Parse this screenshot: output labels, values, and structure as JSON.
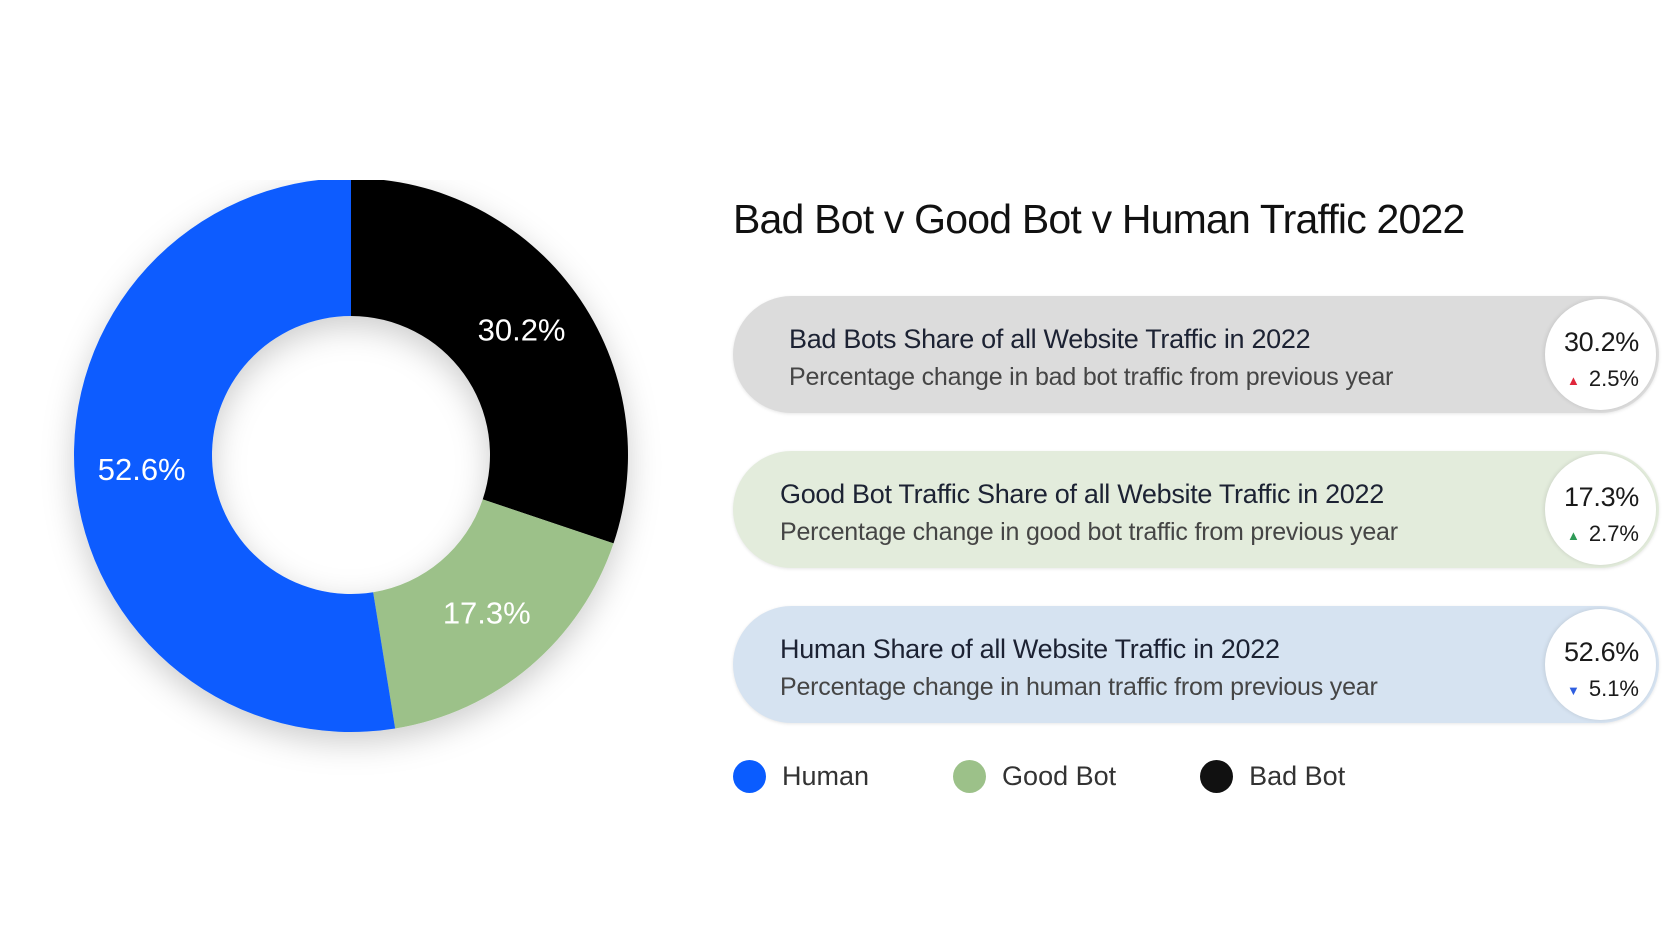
{
  "chart_data": {
    "type": "pie",
    "title": "Bad Bot v Good Bot v Human Traffic 2022",
    "categories": [
      "Bad Bot",
      "Good Bot",
      "Human"
    ],
    "values": [
      30.2,
      17.3,
      52.6
    ],
    "labels": [
      "30.2%",
      "17.3%",
      "52.6%"
    ],
    "colors": [
      "#000000",
      "#9cc189",
      "#0a5cff"
    ],
    "donut": true,
    "legend_placement": "bottom"
  },
  "cards": [
    {
      "heading": "Bad Bots Share of all Website Traffic in 2022",
      "sub": "Percentage change in bad bot traffic from previous year",
      "value": "30.2%",
      "change": "2.5%",
      "direction": "up",
      "arrow": "▲",
      "arrow_color": "#e0263b",
      "bg": "#dcdcdc"
    },
    {
      "heading": "Good Bot Traffic Share of all Website Traffic in 2022",
      "sub": "Percentage change in good bot traffic from previous year",
      "value": "17.3%",
      "change": "2.7%",
      "direction": "up",
      "arrow": "▲",
      "arrow_color": "#2e9a57",
      "bg": "#e3ecdc"
    },
    {
      "heading": "Human Share of all Website Traffic in 2022",
      "sub": "Percentage change in human traffic from previous year",
      "value": "52.6%",
      "change": "5.1%",
      "direction": "down",
      "arrow": "▼",
      "arrow_color": "#2f5fe0",
      "bg": "#d6e3f1"
    }
  ],
  "legend": [
    {
      "label": "Human",
      "color": "#0a5cff"
    },
    {
      "label": "Good Bot",
      "color": "#9cc189"
    },
    {
      "label": "Bad Bot",
      "color": "#111111"
    }
  ]
}
